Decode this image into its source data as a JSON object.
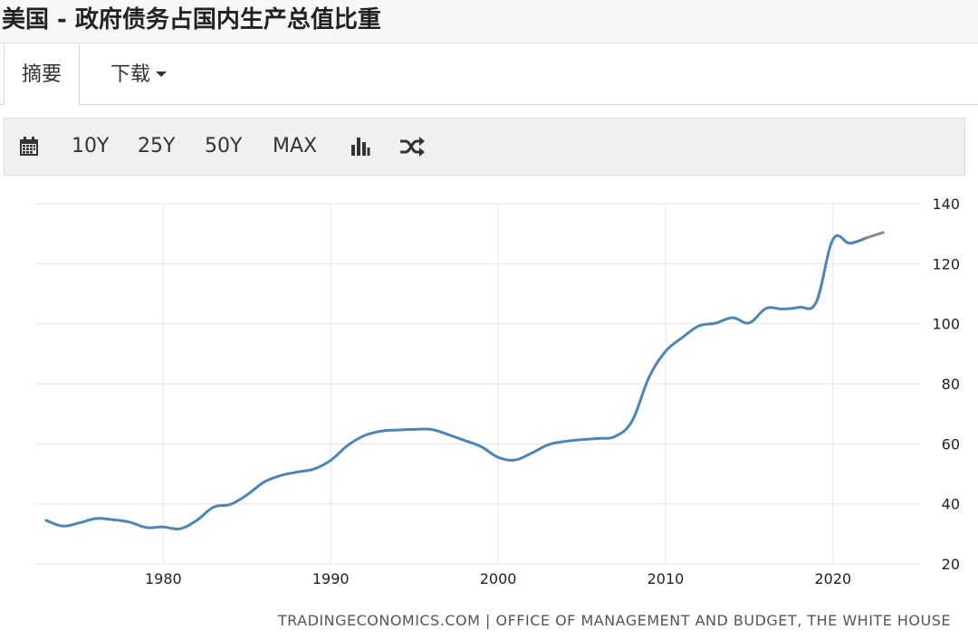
{
  "page": {
    "title": "美国 - 政府债务占国内生产总值比重"
  },
  "tabs": {
    "summary": "摘要",
    "download": "下载"
  },
  "toolbar": {
    "calendar_icon": "calendar-icon",
    "range_10y": "10Y",
    "range_25y": "25Y",
    "range_50y": "50Y",
    "range_max": "MAX",
    "bar_chart_icon": "bar-chart-icon",
    "shuffle_icon": "shuffle-icon"
  },
  "source": "TRADINGECONOMICS.COM | OFFICE OF MANAGEMENT AND BUDGET, THE WHITE HOUSE",
  "colors": {
    "line": "#4a86b8",
    "forecast": "#8a8a8a",
    "grid": "#e6e6e6"
  },
  "chart_data": {
    "type": "line",
    "title": "",
    "xlabel": "",
    "ylabel": "",
    "xlim": [
      1972.3,
      2025.2
    ],
    "ylim": [
      20,
      140
    ],
    "x_ticks": [
      1980,
      1990,
      2000,
      2010,
      2020
    ],
    "y_ticks": [
      20,
      40,
      60,
      80,
      100,
      120,
      140
    ],
    "y_axis_side": "right",
    "grid": true,
    "series": [
      {
        "x": [
          1973,
          1974,
          1975,
          1976,
          1977,
          1978,
          1979,
          1980,
          1981,
          1982,
          1983,
          1984,
          1985,
          1986,
          1987,
          1988,
          1989,
          1990,
          1991,
          1992,
          1993,
          1994,
          1995,
          1996,
          1997,
          1998,
          1999,
          2000,
          2001,
          2002,
          2003,
          2004,
          2005,
          2006,
          2007,
          2008,
          2009,
          2010,
          2011,
          2012,
          2013,
          2014,
          2015,
          2016,
          2017,
          2018,
          2019,
          2020,
          2021,
          2022
        ],
        "values": [
          34.5,
          32.6,
          33.7,
          35.1,
          34.7,
          33.9,
          32.1,
          32.3,
          31.7,
          34.5,
          38.9,
          39.8,
          43.0,
          47.2,
          49.4,
          50.6,
          51.6,
          54.5,
          59.4,
          62.7,
          64.2,
          64.6,
          64.8,
          64.8,
          63.1,
          61.1,
          59.0,
          55.5,
          54.6,
          56.9,
          59.7,
          60.8,
          61.4,
          61.8,
          62.5,
          67.6,
          82.0,
          90.8,
          95.4,
          99.3,
          100.2,
          102.0,
          100.3,
          105.1,
          104.9,
          105.5,
          107.2,
          128.1,
          126.8,
          128.6
        ]
      },
      {
        "x": [
          2022,
          2023
        ],
        "values": [
          128.6,
          130.4
        ]
      }
    ]
  }
}
